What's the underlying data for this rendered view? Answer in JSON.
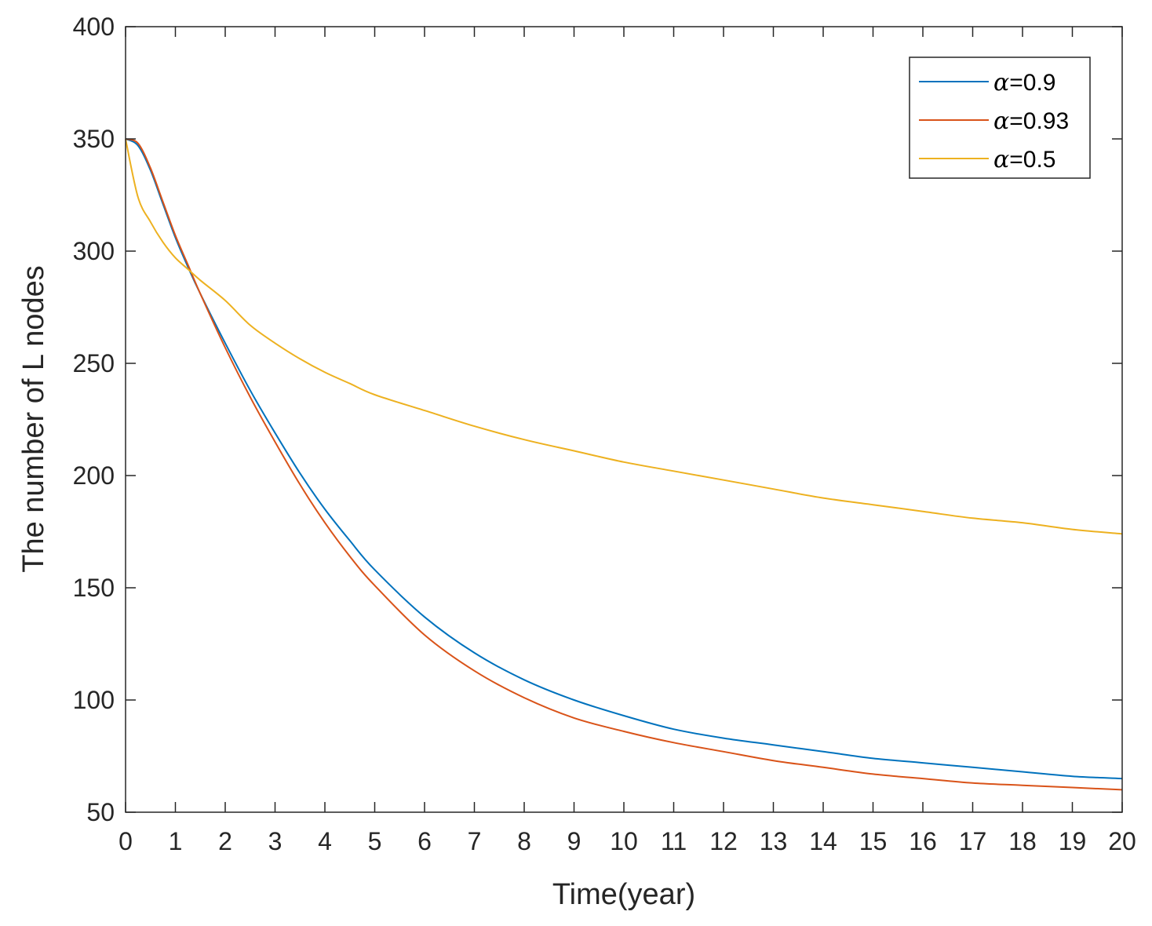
{
  "chart_data": {
    "type": "line",
    "title": "",
    "xlabel": "Time(year)",
    "ylabel": "The number of L nodes",
    "xlim": [
      0,
      20
    ],
    "ylim": [
      50,
      400
    ],
    "xticks": [
      0,
      1,
      2,
      3,
      4,
      5,
      6,
      7,
      8,
      9,
      10,
      11,
      12,
      13,
      14,
      15,
      16,
      17,
      18,
      19,
      20
    ],
    "yticks": [
      50,
      100,
      150,
      200,
      250,
      300,
      350,
      400
    ],
    "grid": false,
    "legend_position": "top-right",
    "x": [
      0,
      0.25,
      0.5,
      0.75,
      1,
      1.25,
      1.5,
      2,
      2.5,
      3,
      3.5,
      4,
      4.5,
      5,
      6,
      7,
      8,
      9,
      10,
      11,
      12,
      13,
      14,
      15,
      16,
      17,
      18,
      19,
      20
    ],
    "series": [
      {
        "symbol": "α",
        "value_text": "=0.9",
        "color": "#0072BD",
        "values": [
          350,
          347,
          336,
          321,
          306,
          293,
          281,
          259,
          238,
          219,
          201,
          185,
          171,
          158,
          137,
          121,
          109,
          100,
          93,
          87,
          83,
          80,
          77,
          74,
          72,
          70,
          68,
          66,
          65
        ]
      },
      {
        "symbol": "α",
        "value_text": "=0.93",
        "color": "#D95319",
        "values": [
          350,
          348,
          337,
          322,
          307,
          294,
          281,
          257,
          235,
          215,
          196,
          179,
          164,
          151,
          129,
          113,
          101,
          92,
          86,
          81,
          77,
          73,
          70,
          67,
          65,
          63,
          62,
          61,
          60
        ]
      },
      {
        "symbol": "α",
        "value_text": "=0.5",
        "color": "#EDB120",
        "values": [
          350,
          324,
          313,
          304,
          297,
          292,
          287,
          278,
          267,
          259,
          252,
          246,
          241,
          236,
          229,
          222,
          216,
          211,
          206,
          202,
          198,
          194,
          190,
          187,
          184,
          181,
          179,
          176,
          174
        ]
      }
    ]
  }
}
